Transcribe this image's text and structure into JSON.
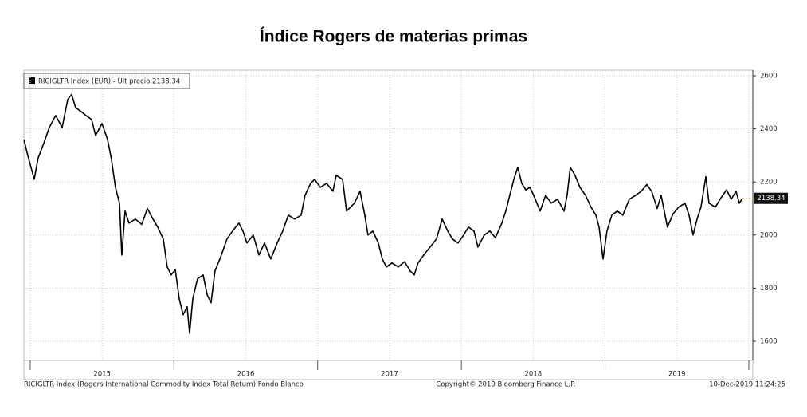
{
  "chart_data": {
    "type": "line",
    "title": "Índice Rogers de materias primas",
    "legend_text": "RICIGLTR Index (EUR) - Últ precio 2138.34",
    "footer_left": "RICIGLTR Index (Rogers International Commodity Index Total Return) Fondo Blanco",
    "footer_center": "Copyright© 2019 Bloomberg Finance L.P.",
    "footer_right": "10-Dec-2019 11:24:25",
    "last_price": 2138.34,
    "color": "#000000",
    "grid": true,
    "xlim": [
      2014.956,
      2020.028
    ],
    "ylim": [
      1528,
      2621
    ],
    "yticks": [
      1600,
      1800,
      2000,
      2200,
      2400,
      2600
    ],
    "xticks": [
      {
        "value": 2015.5,
        "label": "2015"
      },
      {
        "value": 2016.5,
        "label": "2016"
      },
      {
        "value": 2017.5,
        "label": "2017"
      },
      {
        "value": 2018.5,
        "label": "2018"
      },
      {
        "value": 2019.5,
        "label": "2019"
      }
    ],
    "x_boundaries": [
      2015,
      2016,
      2017,
      2018,
      2019,
      2020
    ],
    "series": [
      {
        "name": "RICIGLTR Index (EUR)",
        "color": "#000000",
        "x": [
          2014.956,
          2014.983,
          2015.028,
          2015.055,
          2015.094,
          2015.133,
          2015.177,
          2015.222,
          2015.261,
          2015.288,
          2015.316,
          2015.355,
          2015.388,
          2015.427,
          2015.455,
          2015.499,
          2015.538,
          2015.565,
          2015.593,
          2015.621,
          2015.637,
          2015.66,
          2015.687,
          2015.732,
          2015.776,
          2015.815,
          2015.854,
          2015.887,
          2015.926,
          2015.953,
          2015.981,
          2016.009,
          2016.037,
          2016.064,
          2016.092,
          2016.109,
          2016.131,
          2016.164,
          2016.203,
          2016.231,
          2016.258,
          2016.286,
          2016.33,
          2016.369,
          2016.408,
          2016.452,
          2016.48,
          2016.508,
          2016.552,
          2016.591,
          2016.63,
          2016.674,
          2016.718,
          2016.757,
          2016.796,
          2016.84,
          2016.885,
          2016.912,
          2016.951,
          2016.979,
          2017.018,
          2017.062,
          2017.106,
          2017.129,
          2017.173,
          2017.201,
          2017.228,
          2017.256,
          2017.295,
          2017.328,
          2017.35,
          2017.384,
          2017.422,
          2017.45,
          2017.478,
          2017.517,
          2017.561,
          2017.605,
          2017.644,
          2017.672,
          2017.699,
          2017.738,
          2017.783,
          2017.827,
          2017.866,
          2017.905,
          2017.938,
          2017.977,
          2018.016,
          2018.049,
          2018.088,
          2018.115,
          2018.16,
          2018.198,
          2018.237,
          2018.282,
          2018.309,
          2018.337,
          2018.365,
          2018.392,
          2018.42,
          2018.448,
          2018.476,
          2018.503,
          2018.548,
          2018.586,
          2018.625,
          2018.67,
          2018.714,
          2018.736,
          2018.758,
          2018.791,
          2018.825,
          2018.864,
          2018.902,
          2018.936,
          2018.958,
          2018.986,
          2019.013,
          2019.047,
          2019.085,
          2019.124,
          2019.168,
          2019.213,
          2019.252,
          2019.29,
          2019.324,
          2019.362,
          2019.39,
          2019.434,
          2019.473,
          2019.512,
          2019.556,
          2019.584,
          2019.612,
          2019.64,
          2019.667,
          2019.701,
          2019.723,
          2019.767,
          2019.806,
          2019.845,
          2019.878,
          2019.911,
          2019.934,
          2019.956
        ],
        "values": [
          2360,
          2300,
          2210,
          2290,
          2345,
          2405,
          2450,
          2405,
          2510,
          2530,
          2480,
          2465,
          2450,
          2435,
          2375,
          2420,
          2360,
          2285,
          2180,
          2120,
          1925,
          2090,
          2045,
          2060,
          2040,
          2100,
          2060,
          2030,
          1985,
          1880,
          1850,
          1870,
          1760,
          1700,
          1730,
          1630,
          1760,
          1835,
          1850,
          1775,
          1745,
          1865,
          1925,
          1985,
          2015,
          2045,
          2015,
          1970,
          2000,
          1925,
          1970,
          1910,
          1970,
          2015,
          2075,
          2060,
          2075,
          2150,
          2195,
          2210,
          2180,
          2195,
          2165,
          2225,
          2210,
          2090,
          2105,
          2120,
          2165,
          2075,
          2000,
          2015,
          1970,
          1910,
          1880,
          1895,
          1880,
          1900,
          1865,
          1850,
          1895,
          1925,
          1955,
          1985,
          2060,
          2015,
          1985,
          1970,
          2000,
          2030,
          2015,
          1955,
          2000,
          2015,
          1990,
          2045,
          2090,
          2150,
          2210,
          2255,
          2195,
          2170,
          2180,
          2150,
          2090,
          2150,
          2120,
          2135,
          2090,
          2150,
          2255,
          2225,
          2180,
          2150,
          2105,
          2075,
          2030,
          1910,
          2015,
          2075,
          2090,
          2075,
          2135,
          2150,
          2165,
          2190,
          2165,
          2100,
          2150,
          2030,
          2080,
          2105,
          2120,
          2075,
          2000,
          2060,
          2105,
          2220,
          2120,
          2105,
          2140,
          2170,
          2135,
          2165,
          2120,
          2138.34
        ]
      }
    ]
  }
}
